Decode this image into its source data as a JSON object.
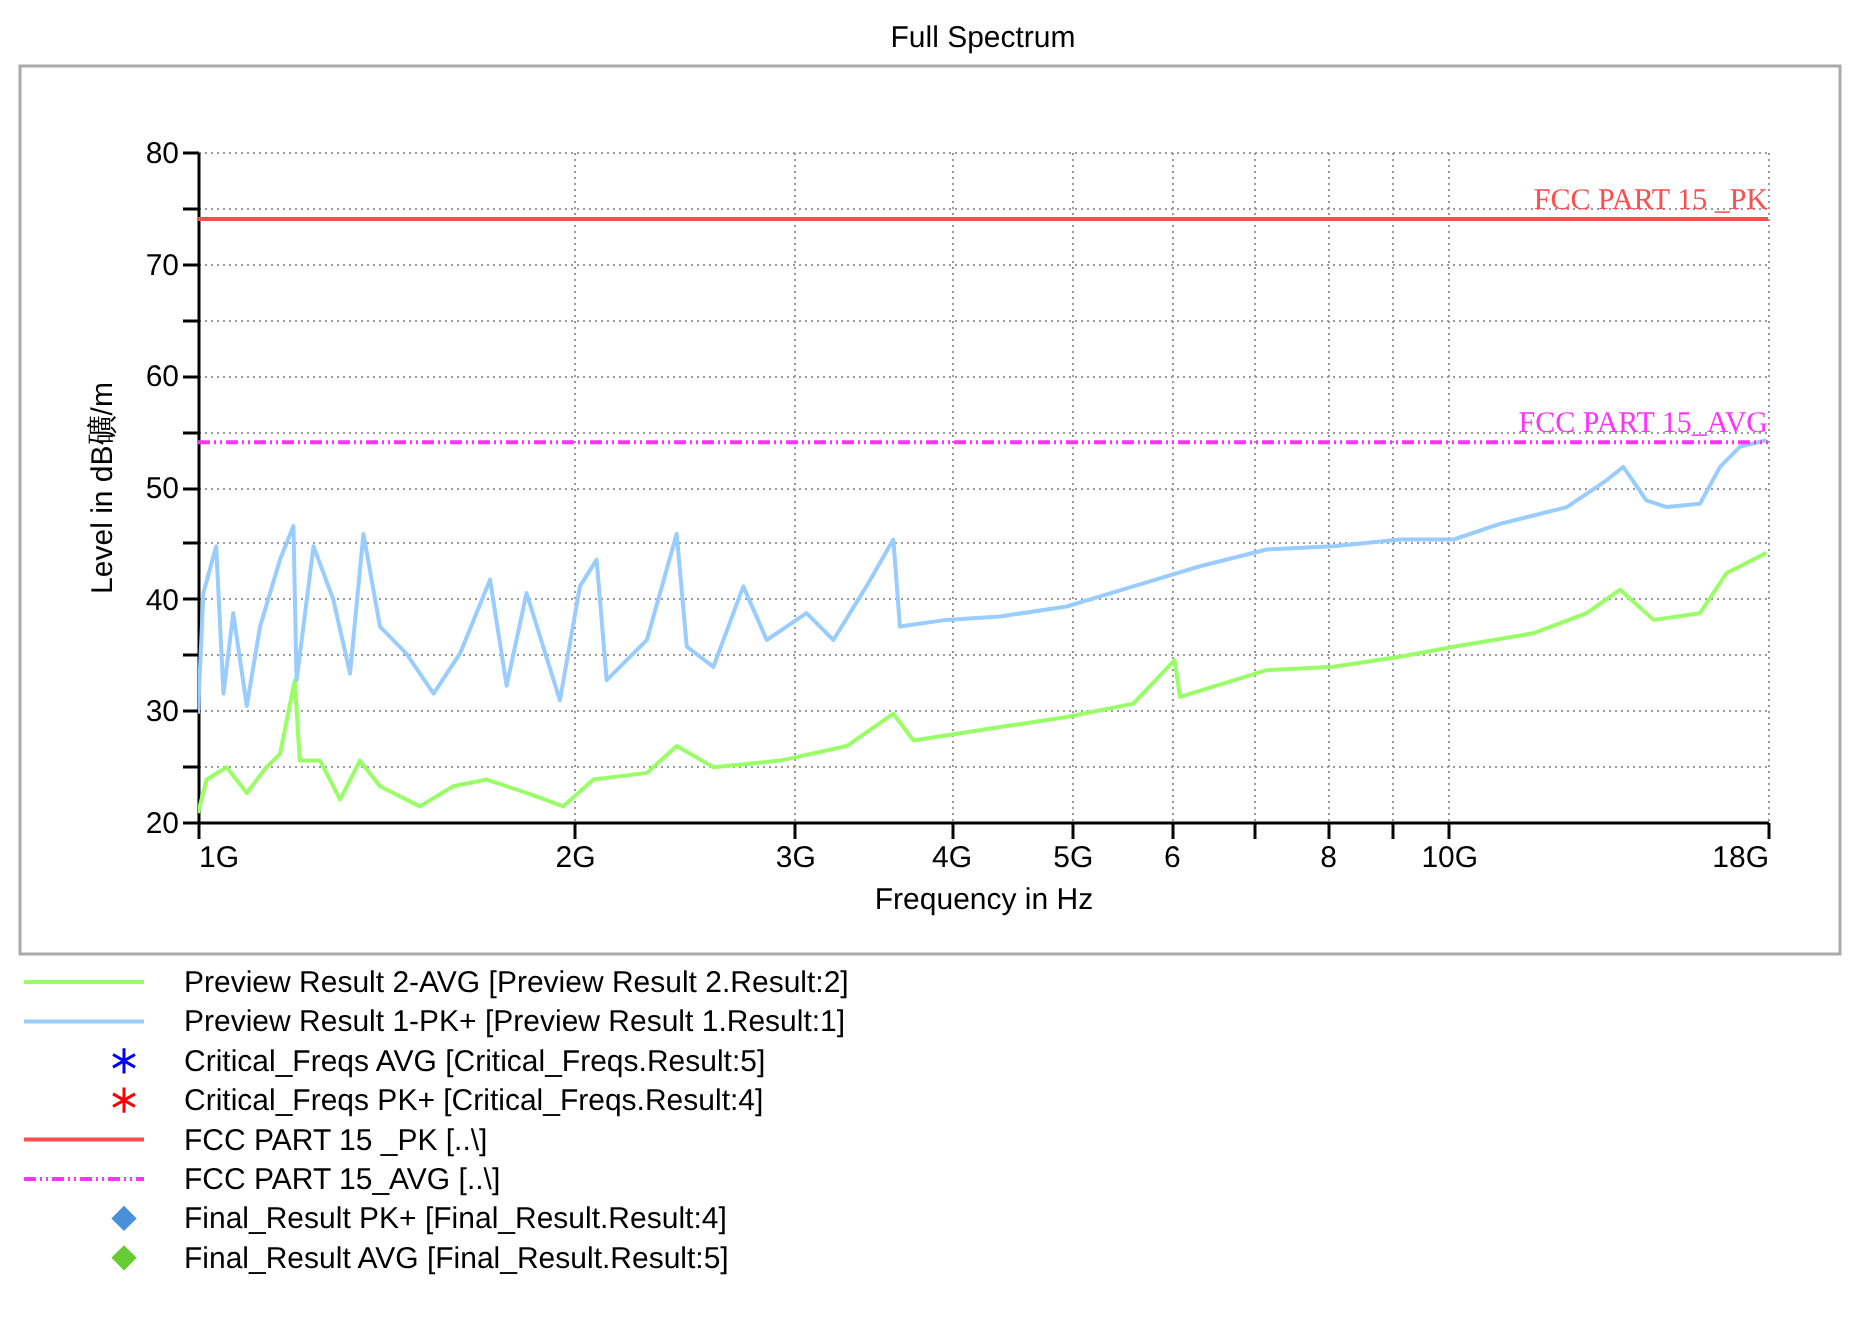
{
  "chart_data": {
    "type": "line",
    "title": "Full Spectrum",
    "xlabel": "Frequency in Hz",
    "ylabel": "Level in dB礦/m",
    "log": "x",
    "grid": true,
    "legend": "bottom",
    "xlim": [
      1,
      18
    ],
    "xticks": [
      {
        "value": 1,
        "label": "1G"
      },
      {
        "value": 2,
        "label": "2G"
      },
      {
        "value": 3,
        "label": "3G"
      },
      {
        "value": 4,
        "label": "4G"
      },
      {
        "value": 5,
        "label": "5G"
      },
      6,
      {
        "value": 7,
        "label": null
      },
      8,
      {
        "value": 9,
        "label": null
      },
      {
        "value": 10,
        "label": "10G"
      },
      {
        "value": 18,
        "label": "18G"
      }
    ],
    "ylim": [
      20,
      80
    ],
    "yticks": [
      20,
      {
        "value": 25,
        "label": null
      },
      30,
      {
        "value": 35,
        "label": null
      },
      40,
      {
        "value": 45,
        "label": null
      },
      50,
      {
        "value": 55,
        "label": null
      },
      60,
      {
        "value": 65,
        "label": null
      },
      70,
      {
        "value": 75,
        "label": null
      },
      80
    ],
    "series": [
      {
        "name": "Preview Result 2-AVG   [Preview Result 2.Result:2]",
        "color": "#99ff66",
        "line_style": "solid",
        "x": [
          1.0,
          1.016,
          1.054,
          1.094,
          1.134,
          1.163,
          1.195,
          1.206,
          1.252,
          1.299,
          1.347,
          1.398,
          1.504,
          1.6,
          1.701,
          1.831,
          1.959,
          2.071,
          2.285,
          2.414,
          2.583,
          2.92,
          3.301,
          3.597,
          3.733,
          4.378,
          4.949,
          5.595,
          6.037,
          6.097,
          7.152,
          8.085,
          9.141,
          10.09,
          11.68,
          12.89,
          13.71,
          14.58,
          15.88,
          16.68,
          17.95
        ],
        "values": [
          20.8,
          23.8,
          24.9,
          22.6,
          24.9,
          26.1,
          32.7,
          25.5,
          25.5,
          22.0,
          25.5,
          23.2,
          21.4,
          23.2,
          23.8,
          22.6,
          21.4,
          23.8,
          24.4,
          26.8,
          24.9,
          25.5,
          26.8,
          29.7,
          27.3,
          28.5,
          29.4,
          30.6,
          34.5,
          31.2,
          33.6,
          33.9,
          34.8,
          35.7,
          36.9,
          38.7,
          40.8,
          38.1,
          38.7,
          42.3,
          44.1
        ]
      },
      {
        "name": "Preview Result 1-PK+   [Preview Result 1.Result:1]",
        "color": "#99ccff",
        "line_style": "solid",
        "x": [
          1.0,
          1.01,
          1.034,
          1.048,
          1.067,
          1.094,
          1.121,
          1.163,
          1.192,
          1.199,
          1.237,
          1.283,
          1.323,
          1.356,
          1.398,
          1.467,
          1.543,
          1.62,
          1.712,
          1.765,
          1.831,
          1.947,
          2.02,
          2.083,
          2.122,
          2.285,
          2.414,
          2.459,
          2.583,
          2.729,
          2.849,
          3.066,
          3.221,
          3.423,
          3.597,
          3.641,
          3.963,
          4.378,
          4.949,
          5.595,
          6.326,
          7.152,
          8.085,
          9.141,
          10.09,
          10.99,
          12.43,
          13.37,
          13.79,
          14.39,
          14.94,
          15.88,
          16.48,
          17.09,
          17.95
        ],
        "values": [
          29.7,
          40.5,
          44.7,
          31.5,
          38.7,
          30.4,
          37.5,
          43.5,
          46.5,
          32.7,
          44.7,
          39.9,
          33.3,
          45.8,
          37.5,
          35.1,
          31.5,
          35.1,
          41.7,
          32.2,
          40.5,
          30.9,
          41.1,
          43.5,
          32.7,
          36.3,
          45.8,
          35.7,
          33.9,
          41.1,
          36.3,
          38.7,
          36.3,
          41.1,
          45.3,
          37.5,
          38.1,
          38.4,
          39.3,
          41.1,
          42.9,
          44.4,
          44.7,
          45.3,
          45.3,
          46.7,
          48.2,
          50.6,
          51.8,
          48.8,
          48.2,
          48.5,
          51.8,
          53.6,
          54.2
        ]
      },
      {
        "name": "Critical_Freqs AVG   [Critical_Freqs.Result:5]",
        "type": "scatter",
        "marker": "star",
        "color": "#0000ff"
      },
      {
        "name": "Critical_Freqs PK+   [Critical_Freqs.Result:4]",
        "type": "scatter",
        "marker": "star",
        "color": "#ff0000"
      },
      {
        "name": "FCC PART 15 _PK   [..\\]",
        "color": "#ff4d4d",
        "line_style": "solid",
        "x": [
          1,
          18
        ],
        "values": [
          74,
          74
        ]
      },
      {
        "name": "FCC PART 15_AVG   [..\\]",
        "color": "#ff33ff",
        "line_style": "dashed",
        "x": [
          1,
          18
        ],
        "values": [
          54,
          54
        ]
      },
      {
        "name": "Final_Result PK+   [Final_Result.Result:4]",
        "type": "scatter",
        "marker": "diamond",
        "color": "#4a90d9"
      },
      {
        "name": "Final_Result AVG   [Final_Result.Result:5]",
        "type": "scatter",
        "marker": "diamond",
        "color": "#66cc33"
      }
    ],
    "annotations": [
      {
        "text": "FCC PART 15 _PK",
        "x": 18,
        "y": 74
      },
      {
        "text": "FCC PART 15_AVG",
        "x": 18,
        "y": 54
      }
    ]
  }
}
